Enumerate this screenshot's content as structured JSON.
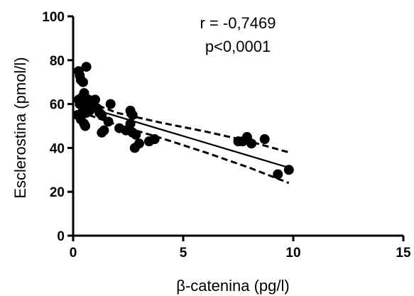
{
  "chart_data": {
    "type": "scatter",
    "xlabel": "β-catenina (pg/l)",
    "ylabel": "Esclerostina (pmol/l)",
    "xlim": [
      0,
      15
    ],
    "ylim": [
      0,
      100
    ],
    "x_ticks": [
      0,
      5,
      10,
      15
    ],
    "y_ticks": [
      0,
      20,
      40,
      60,
      80,
      100
    ],
    "annotations": [
      "r = -0,7469",
      "p<0,0001"
    ],
    "grid": false,
    "points": [
      {
        "x": 0.25,
        "y": 75
      },
      {
        "x": 0.3,
        "y": 73
      },
      {
        "x": 0.35,
        "y": 71
      },
      {
        "x": 0.6,
        "y": 77
      },
      {
        "x": 0.45,
        "y": 70
      },
      {
        "x": 0.25,
        "y": 62
      },
      {
        "x": 0.3,
        "y": 60
      },
      {
        "x": 0.4,
        "y": 63
      },
      {
        "x": 0.45,
        "y": 58
      },
      {
        "x": 0.5,
        "y": 65
      },
      {
        "x": 0.55,
        "y": 61
      },
      {
        "x": 0.6,
        "y": 56
      },
      {
        "x": 0.2,
        "y": 55
      },
      {
        "x": 0.35,
        "y": 53
      },
      {
        "x": 0.5,
        "y": 51
      },
      {
        "x": 0.55,
        "y": 50
      },
      {
        "x": 0.65,
        "y": 59
      },
      {
        "x": 0.7,
        "y": 62
      },
      {
        "x": 0.75,
        "y": 57
      },
      {
        "x": 0.9,
        "y": 61
      },
      {
        "x": 1.0,
        "y": 62
      },
      {
        "x": 1.1,
        "y": 58
      },
      {
        "x": 1.2,
        "y": 56
      },
      {
        "x": 1.3,
        "y": 55
      },
      {
        "x": 1.4,
        "y": 48
      },
      {
        "x": 1.3,
        "y": 47
      },
      {
        "x": 1.6,
        "y": 52
      },
      {
        "x": 1.7,
        "y": 60
      },
      {
        "x": 2.1,
        "y": 49
      },
      {
        "x": 2.4,
        "y": 48
      },
      {
        "x": 2.6,
        "y": 57
      },
      {
        "x": 2.6,
        "y": 51
      },
      {
        "x": 2.7,
        "y": 55
      },
      {
        "x": 2.7,
        "y": 47
      },
      {
        "x": 2.8,
        "y": 40
      },
      {
        "x": 2.85,
        "y": 46
      },
      {
        "x": 3.0,
        "y": 42
      },
      {
        "x": 3.45,
        "y": 43
      },
      {
        "x": 3.7,
        "y": 44
      },
      {
        "x": 7.5,
        "y": 43
      },
      {
        "x": 7.7,
        "y": 43
      },
      {
        "x": 7.9,
        "y": 45
      },
      {
        "x": 8.1,
        "y": 42
      },
      {
        "x": 8.7,
        "y": 44
      },
      {
        "x": 9.3,
        "y": 28
      },
      {
        "x": 9.8,
        "y": 30
      }
    ],
    "fit": {
      "x": [
        0.3,
        9.8
      ],
      "y": [
        59.5,
        31
      ]
    },
    "ci_upper": {
      "x": [
        0.3,
        2,
        4,
        6,
        8,
        9.8
      ],
      "y": [
        62.5,
        56,
        51.5,
        47.5,
        43,
        38
      ]
    },
    "ci_lower": {
      "x": [
        0.3,
        2,
        4,
        6,
        8,
        9.8
      ],
      "y": [
        56.5,
        50.5,
        44.5,
        38,
        31,
        24
      ]
    }
  }
}
